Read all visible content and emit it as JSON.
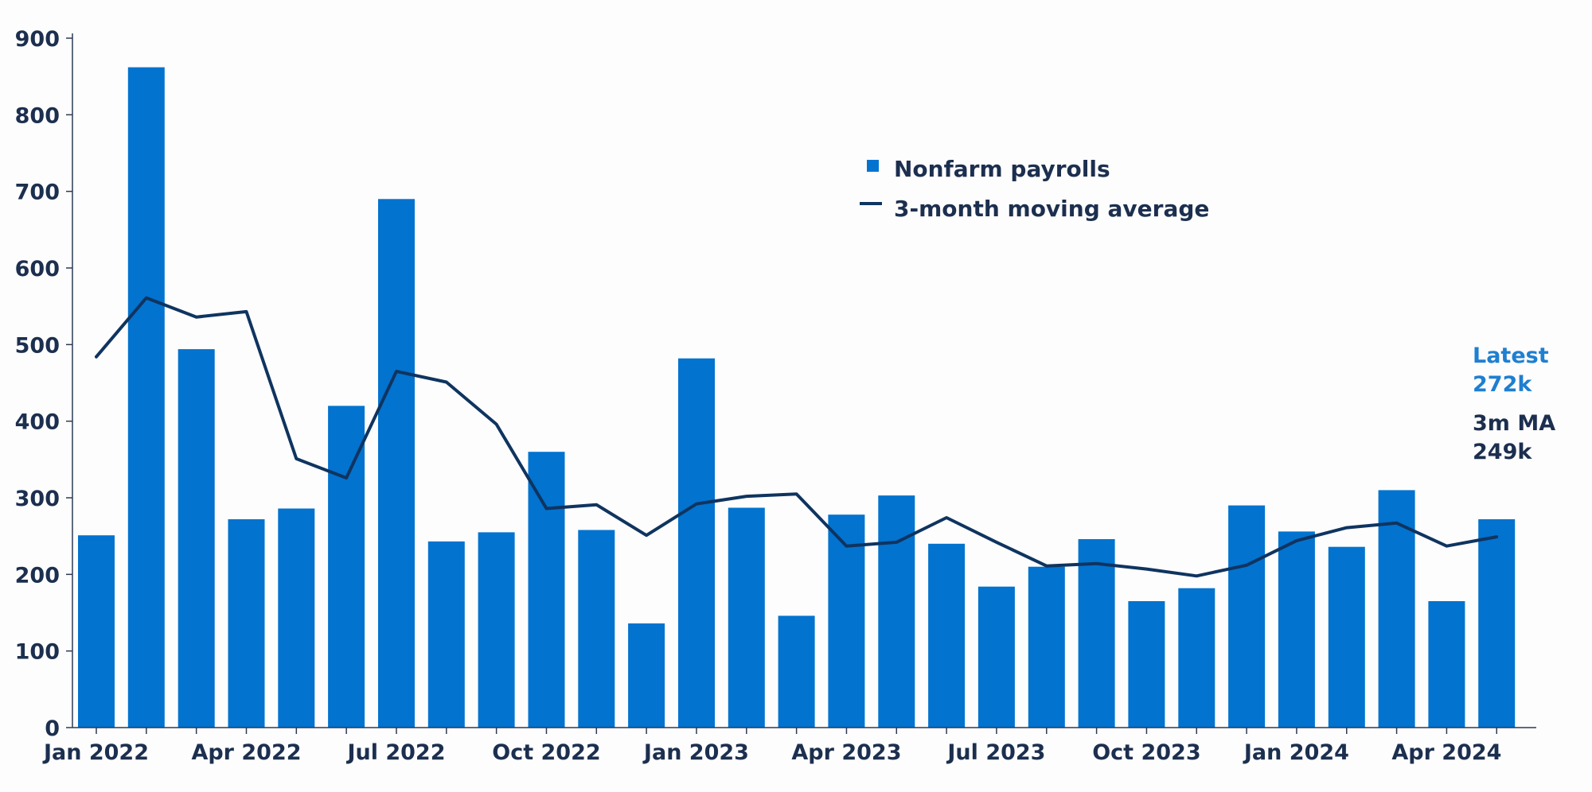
{
  "chart_data": {
    "type": "bar",
    "title": "",
    "xlabel": "",
    "ylabel": "",
    "ylim": [
      0,
      900
    ],
    "yticks": [
      0,
      100,
      200,
      300,
      400,
      500,
      600,
      700,
      800,
      900
    ],
    "x_tick_labels": [
      "Jan 2022",
      "Apr 2022",
      "Jul 2022",
      "Oct 2022",
      "Jan 2023",
      "Apr 2023",
      "Jul 2023",
      "Oct 2023",
      "Jan 2024",
      "Apr 2024"
    ],
    "categories": [
      "Jan 2022",
      "Feb 2022",
      "Mar 2022",
      "Apr 2022",
      "May 2022",
      "Jun 2022",
      "Jul 2022",
      "Aug 2022",
      "Sep 2022",
      "Oct 2022",
      "Nov 2022",
      "Dec 2022",
      "Jan 2023",
      "Feb 2023",
      "Mar 2023",
      "Apr 2023",
      "May 2023",
      "Jun 2023",
      "Jul 2023",
      "Aug 2023",
      "Sep 2023",
      "Oct 2023",
      "Nov 2023",
      "Dec 2023",
      "Jan 2024",
      "Feb 2024",
      "Mar 2024",
      "Apr 2024",
      "May 2024"
    ],
    "series": [
      {
        "name": "Nonfarm payrolls",
        "type": "bar",
        "color": "#0273cf",
        "values": [
          251,
          862,
          494,
          272,
          286,
          420,
          690,
          243,
          255,
          360,
          258,
          136,
          482,
          287,
          146,
          278,
          303,
          240,
          184,
          210,
          246,
          165,
          182,
          290,
          256,
          236,
          310,
          165,
          272
        ]
      },
      {
        "name": "3-month moving average",
        "type": "line",
        "color": "#0f3460",
        "values": [
          484,
          561,
          536,
          543,
          351,
          326,
          465,
          451,
          396,
          286,
          291,
          251,
          292,
          302,
          305,
          237,
          242,
          274,
          242,
          211,
          214,
          207,
          198,
          212,
          244,
          261,
          267,
          237,
          249
        ]
      }
    ],
    "legend_position": "top-center",
    "grid": false,
    "annotations": {
      "latest_label": "Latest",
      "latest_value": "272k",
      "ma_label": "3m MA",
      "ma_value": "249k"
    }
  }
}
